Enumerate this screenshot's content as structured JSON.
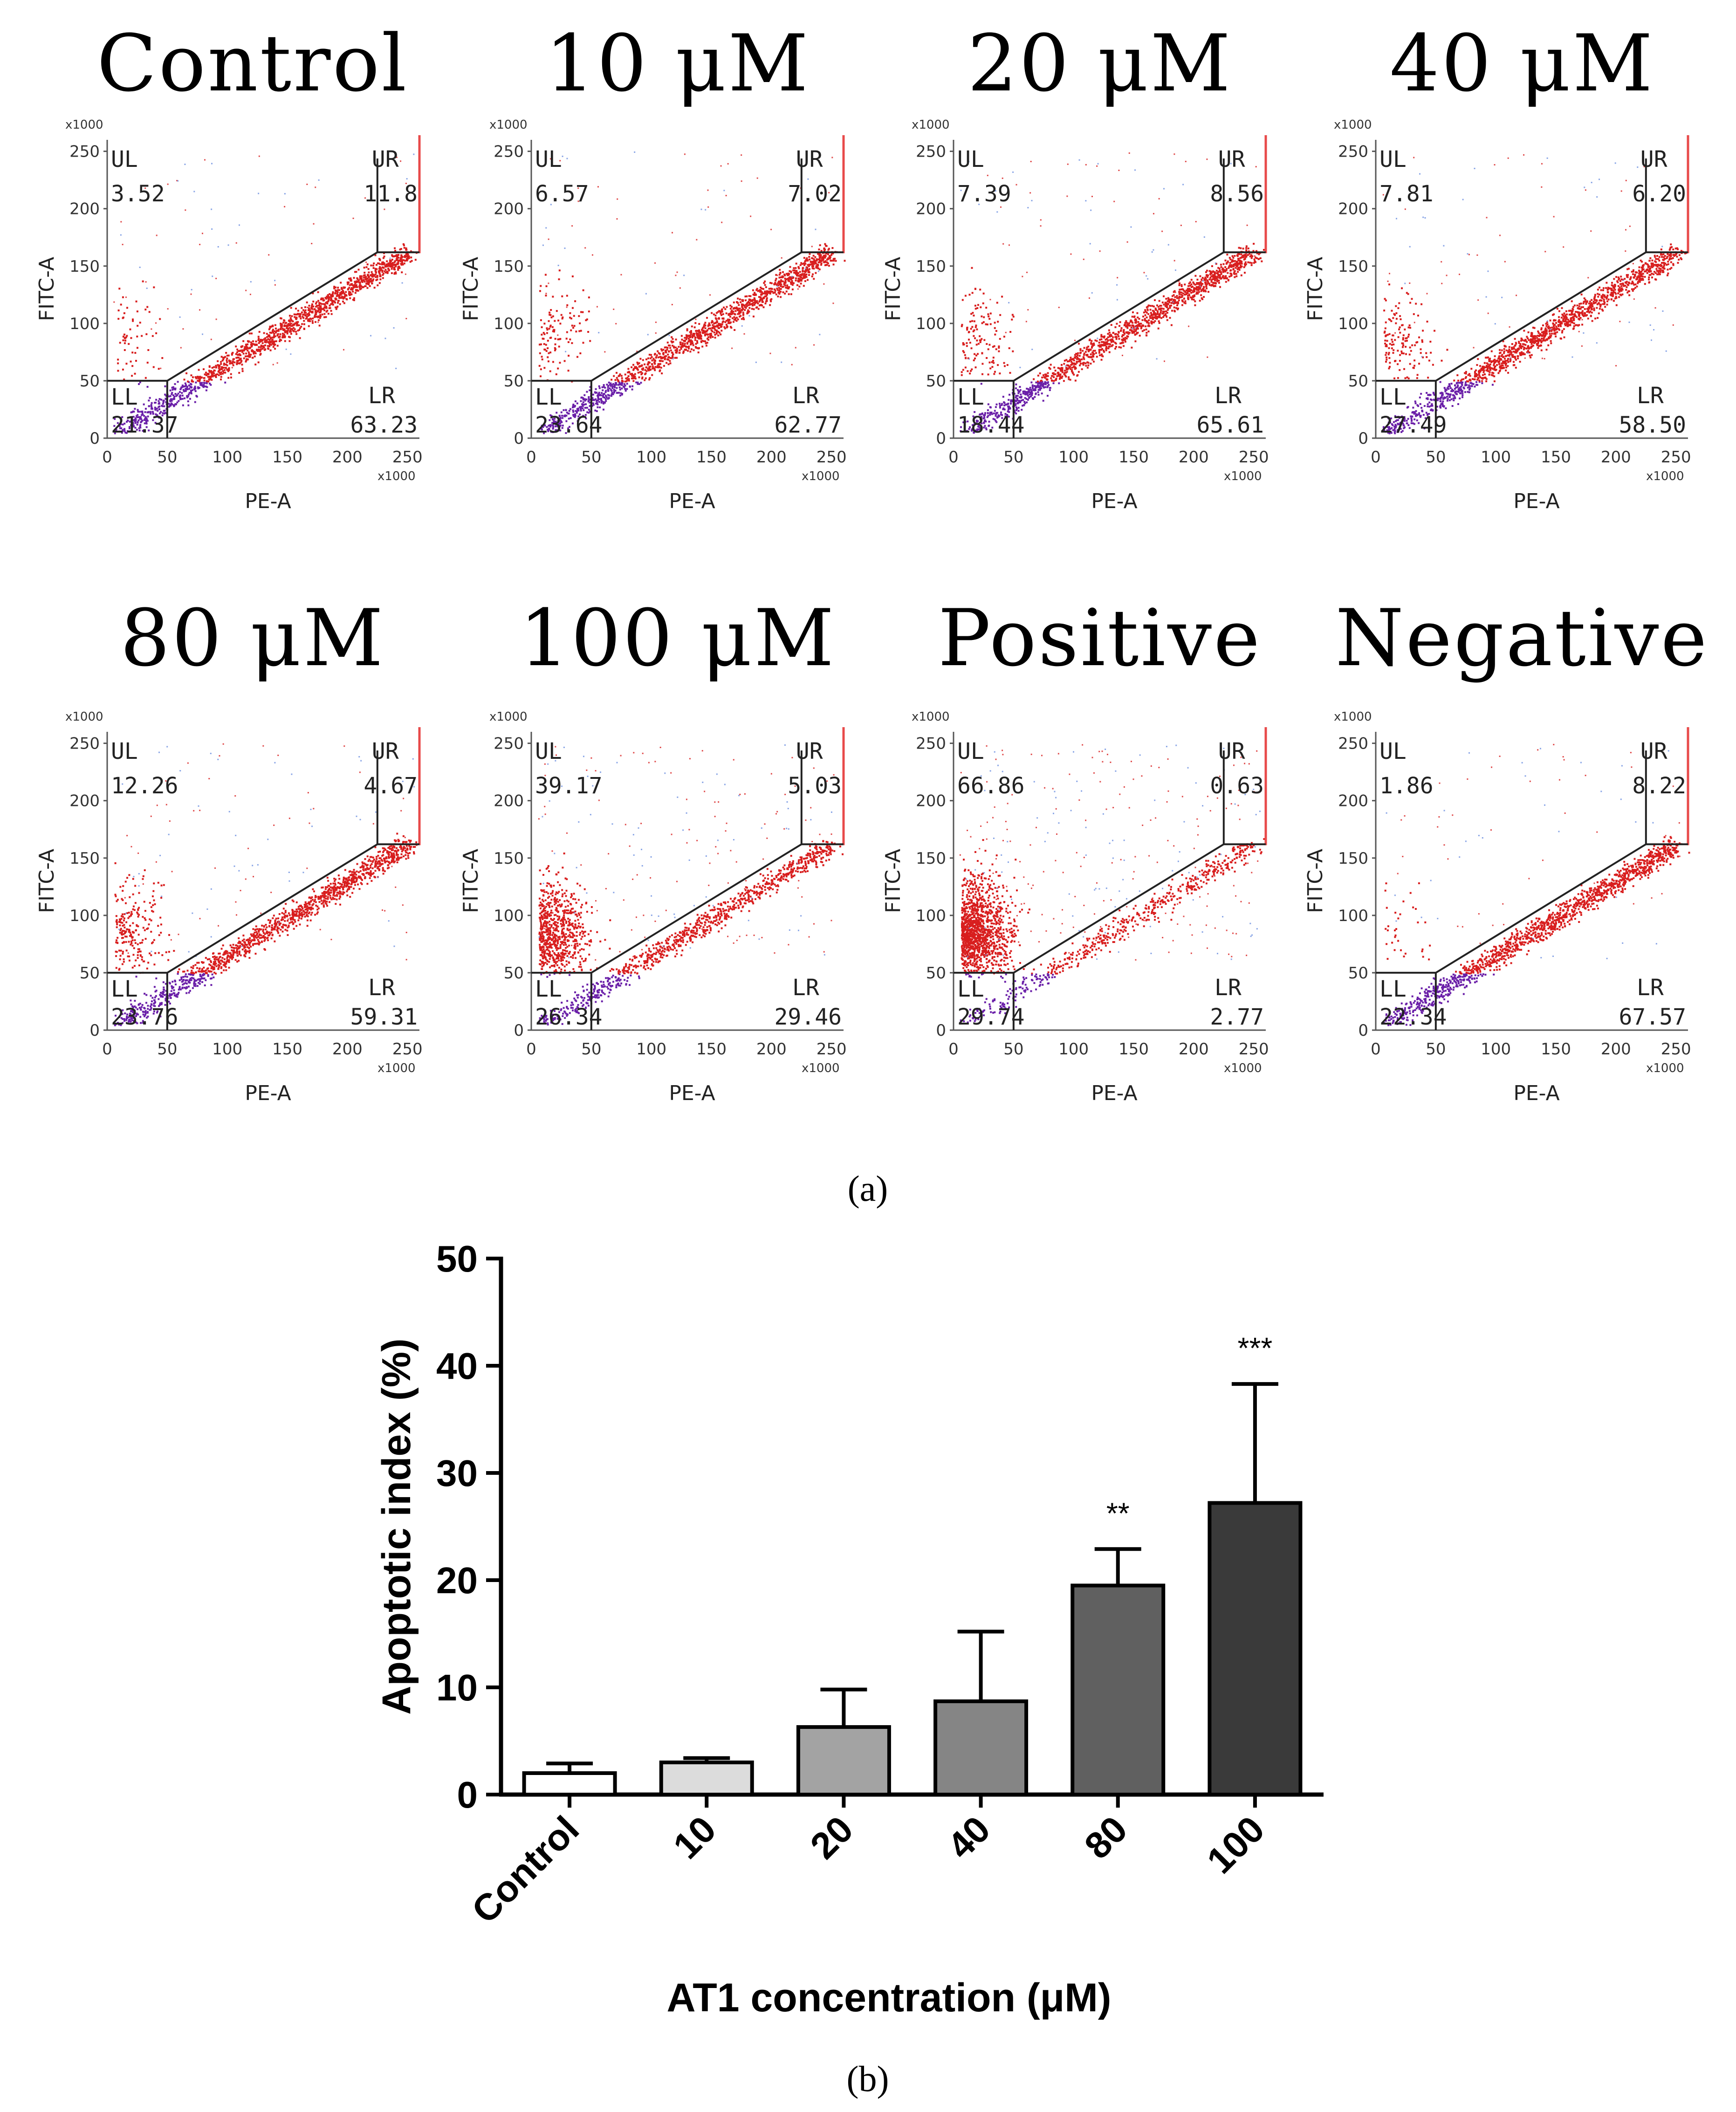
{
  "labels": {
    "part_a": "(a)",
    "part_b": "(b)"
  },
  "colors": {
    "dots_high": "#d81e1e",
    "dots_low": "#6a1fa8",
    "dots_scatter": "#6b8fe0",
    "gate_line": "#222222",
    "edge_line": "#e84a4a"
  },
  "flow_plots": [
    {
      "title": "Control",
      "UL": "3.52",
      "UR": "11.8",
      "LL": "21.37",
      "LR": "63.23"
    },
    {
      "title": "10 μM",
      "UL": "6.57",
      "UR": "7.02",
      "LL": "23.64",
      "LR": "62.77"
    },
    {
      "title": "20 μM",
      "UL": "7.39",
      "UR": "8.56",
      "LL": "18.44",
      "LR": "65.61"
    },
    {
      "title": "40 μM",
      "UL": "7.81",
      "UR": "6.20",
      "LL": "27.49",
      "LR": "58.50"
    },
    {
      "title": "80 μM",
      "UL": "12.26",
      "UR": "4.67",
      "LL": "23.76",
      "LR": "59.31"
    },
    {
      "title": "100 μM",
      "UL": "39.17",
      "UR": "5.03",
      "LL": "26.34",
      "LR": "29.46"
    },
    {
      "title": "Positive",
      "UL": "66.86",
      "UR": "0.63",
      "LL": "29.74",
      "LR": "2.77"
    },
    {
      "title": "Negative",
      "UL": "1.86",
      "UR": "8.22",
      "LL": "22.34",
      "LR": "67.57"
    }
  ],
  "flow_axes": {
    "xlabel": "PE-A",
    "ylabel": "FITC-A",
    "multiplier": "x1000",
    "ticks": [
      "0",
      "50",
      "100",
      "150",
      "200",
      "250"
    ],
    "quadrant_labels": {
      "ul": "UL",
      "ur": "UR",
      "ll": "LL",
      "lr": "LR"
    }
  },
  "chart_data": {
    "type": "bar",
    "title": "",
    "xlabel": "AT1 concentration (μM)",
    "ylabel": "Apoptotic index (%)",
    "categories": [
      "Control",
      "10",
      "20",
      "40",
      "80",
      "100"
    ],
    "values": [
      2.0,
      3.0,
      6.3,
      8.7,
      19.5,
      27.2
    ],
    "errors": [
      0.9,
      0.4,
      3.5,
      6.5,
      3.4,
      11.1
    ],
    "significance": [
      "",
      "",
      "",
      "",
      "**",
      "***"
    ],
    "bar_colors": [
      "#ffffff",
      "#dcdcdc",
      "#a3a3a3",
      "#858585",
      "#606060",
      "#3a3a3a"
    ],
    "ylim": [
      0,
      50
    ],
    "yticks": [
      "0",
      "10",
      "20",
      "30",
      "40",
      "50"
    ],
    "grid": false
  }
}
